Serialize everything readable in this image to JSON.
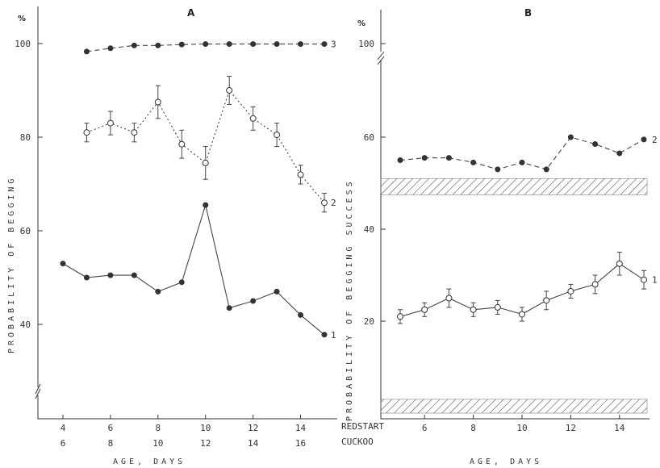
{
  "chart_data": [
    {
      "panel": "A",
      "type": "line",
      "title": "A",
      "unit": "%",
      "ylabel": "PROBABILITY OF BEGGING",
      "xlabel": "AGE, DAYS",
      "ylim": [
        26,
        105
      ],
      "xlim": [
        3.8,
        15.2
      ],
      "y_ticks": [
        40,
        60,
        80,
        100
      ],
      "x_ticks_redstart": [
        4,
        6,
        8,
        10,
        12,
        14
      ],
      "x_ticks_cuckoo": [
        6,
        8,
        10,
        12,
        14,
        16
      ],
      "series": [
        {
          "name": "3",
          "style": "dashed",
          "marker": "filled",
          "x": [
            5,
            6,
            7,
            8,
            9,
            10,
            11,
            12,
            13,
            14,
            15
          ],
          "y": [
            98.3,
            99,
            99.6,
            99.6,
            99.8,
            99.9,
            99.9,
            99.9,
            99.9,
            99.9,
            99.9
          ],
          "err": []
        },
        {
          "name": "2",
          "style": "dotted",
          "marker": "open",
          "x": [
            5,
            6,
            7,
            8,
            9,
            10,
            11,
            12,
            13,
            14,
            15
          ],
          "y": [
            81,
            83,
            81,
            87.5,
            78.5,
            74.5,
            90,
            84,
            80.5,
            72,
            66
          ],
          "err": [
            2,
            2.5,
            2,
            3.5,
            3,
            3.5,
            3,
            2.5,
            2.5,
            2,
            2
          ]
        },
        {
          "name": "1",
          "style": "solid",
          "marker": "filled",
          "x": [
            4,
            5,
            6,
            7,
            8,
            9,
            10,
            11,
            12,
            13,
            14,
            15
          ],
          "y": [
            53,
            50,
            50.5,
            50.5,
            47,
            49,
            65.5,
            43.5,
            45,
            47,
            42,
            37.8
          ],
          "err": []
        }
      ]
    },
    {
      "panel": "B",
      "type": "line",
      "title": "B",
      "unit": "%",
      "ylabel": "PROBABILITY OF BEGGING SUCCESS",
      "xlabel": "AGE, DAYS",
      "ylim": [
        0,
        103
      ],
      "xlim": [
        4.5,
        15.1
      ],
      "y_ticks": [
        20,
        40,
        60
      ],
      "y_ticks_top": [
        100
      ],
      "x_ticks_redstart": [
        6,
        8,
        10,
        12,
        14
      ],
      "x_axis_row_labels": [
        "REDSTART",
        "CUCKOO"
      ],
      "hatched_bands": [
        [
          47.5,
          51
        ],
        [
          0,
          3
        ]
      ],
      "series": [
        {
          "name": "2",
          "style": "dashed",
          "marker": "filled",
          "x": [
            5,
            6,
            7,
            8,
            9,
            10,
            11,
            12,
            13,
            14,
            15
          ],
          "y": [
            55,
            55.5,
            55.5,
            54.5,
            53,
            54.5,
            53,
            60,
            58.5,
            56.5,
            59.5
          ],
          "err": []
        },
        {
          "name": "1",
          "style": "solid",
          "marker": "open",
          "x": [
            5,
            6,
            7,
            8,
            9,
            10,
            11,
            12,
            13,
            14,
            15
          ],
          "y": [
            21,
            22.5,
            25,
            22.5,
            23,
            21.5,
            24.5,
            26.5,
            28,
            32.5,
            29
          ],
          "err": [
            1.5,
            1.5,
            2,
            1.5,
            1.5,
            1.5,
            2,
            1.5,
            2,
            2.5,
            2
          ]
        }
      ]
    }
  ]
}
